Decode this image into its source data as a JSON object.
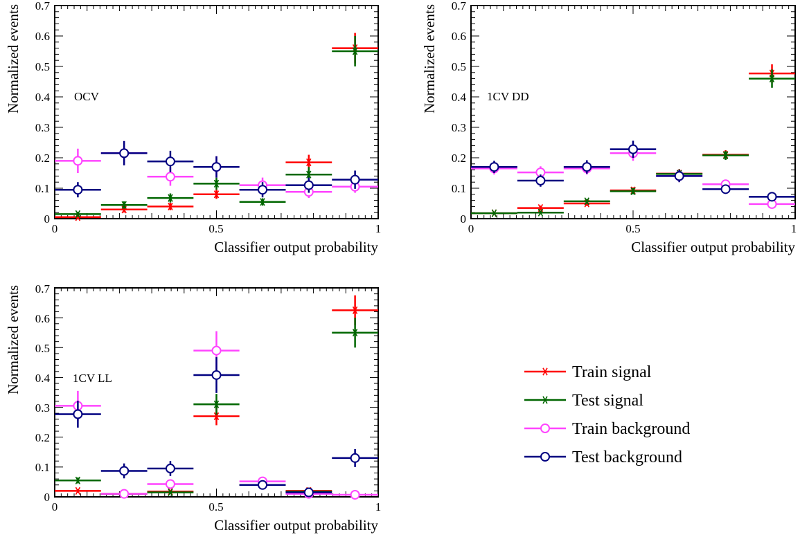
{
  "legend": {
    "entries": [
      {
        "label": "Train signal",
        "color": "#ff0000",
        "marker": "star"
      },
      {
        "label": "Test signal",
        "color": "#006600",
        "marker": "star"
      },
      {
        "label": "Train background",
        "color": "#ff44ff",
        "marker": "circle"
      },
      {
        "label": "Test background",
        "color": "#000080",
        "marker": "circle"
      }
    ]
  },
  "chart_data": [
    {
      "type": "scatter",
      "panel_label": "OCV",
      "xlabel": "Classifier output probability",
      "ylabel": "Normalized events",
      "xlim": [
        0,
        1
      ],
      "ylim": [
        0,
        0.7
      ],
      "x_ticks": [
        "0",
        "0.5",
        "1"
      ],
      "y_ticks": [
        "0",
        "0.1",
        "0.2",
        "0.3",
        "0.4",
        "0.5",
        "0.6",
        "0.7"
      ],
      "bin_edges": [
        0,
        0.143,
        0.286,
        0.429,
        0.571,
        0.714,
        0.857,
        1.0
      ],
      "series": [
        {
          "name": "Train signal",
          "values": [
            0.005,
            0.03,
            0.04,
            0.08,
            0.095,
            0.185,
            0.56
          ],
          "errors": [
            0.005,
            0.01,
            0.012,
            0.015,
            0.015,
            0.025,
            0.05
          ]
        },
        {
          "name": "Test signal",
          "values": [
            0.015,
            0.045,
            0.068,
            0.115,
            0.055,
            0.145,
            0.55
          ],
          "errors": [
            0.008,
            0.012,
            0.015,
            0.02,
            0.012,
            0.025,
            0.05
          ]
        },
        {
          "name": "Train background",
          "values": [
            0.19,
            0.215,
            0.138,
            0.17,
            0.11,
            0.088,
            0.105
          ],
          "errors": [
            0.04,
            0.04,
            0.03,
            0.035,
            0.025,
            0.02,
            0.02
          ]
        },
        {
          "name": "Test background",
          "values": [
            0.095,
            0.215,
            0.188,
            0.17,
            0.095,
            0.11,
            0.128
          ],
          "errors": [
            0.025,
            0.04,
            0.035,
            0.035,
            0.025,
            0.025,
            0.03
          ]
        }
      ]
    },
    {
      "type": "scatter",
      "panel_label": "1CV DD",
      "xlabel": "Classifier output probability",
      "ylabel": "Normalized events",
      "xlim": [
        0,
        1
      ],
      "ylim": [
        0,
        0.7
      ],
      "x_ticks": [
        "0",
        "0.5",
        "1"
      ],
      "y_ticks": [
        "0",
        "0.1",
        "0.2",
        "0.3",
        "0.4",
        "0.5",
        "0.6",
        "0.7"
      ],
      "bin_edges": [
        0,
        0.143,
        0.286,
        0.429,
        0.571,
        0.714,
        0.857,
        1.0
      ],
      "series": [
        {
          "name": "Train signal",
          "values": [
            0.018,
            0.035,
            0.05,
            0.093,
            0.148,
            0.21,
            0.477
          ],
          "errors": [
            0.005,
            0.008,
            0.008,
            0.01,
            0.015,
            0.015,
            0.03
          ]
        },
        {
          "name": "Test signal",
          "values": [
            0.018,
            0.02,
            0.057,
            0.09,
            0.147,
            0.208,
            0.46
          ],
          "errors": [
            0.005,
            0.006,
            0.008,
            0.01,
            0.015,
            0.015,
            0.03
          ]
        },
        {
          "name": "Train background",
          "values": [
            0.165,
            0.152,
            0.165,
            0.215,
            0.14,
            0.113,
            0.048
          ],
          "errors": [
            0.02,
            0.02,
            0.02,
            0.025,
            0.02,
            0.015,
            0.01
          ]
        },
        {
          "name": "Test background",
          "values": [
            0.17,
            0.125,
            0.17,
            0.228,
            0.14,
            0.097,
            0.072
          ],
          "errors": [
            0.02,
            0.02,
            0.022,
            0.028,
            0.02,
            0.015,
            0.012
          ]
        }
      ]
    },
    {
      "type": "scatter",
      "panel_label": "1CV LL",
      "xlabel": "Classifier output probability",
      "ylabel": "Normalized events",
      "xlim": [
        0,
        1
      ],
      "ylim": [
        0,
        0.7
      ],
      "x_ticks": [
        "0",
        "0.5",
        "1"
      ],
      "y_ticks": [
        "0",
        "0.1",
        "0.2",
        "0.3",
        "0.4",
        "0.5",
        "0.6",
        "0.7"
      ],
      "bin_edges": [
        0,
        0.143,
        0.286,
        0.429,
        0.571,
        0.714,
        0.857,
        1.0
      ],
      "series": [
        {
          "name": "Train signal",
          "values": [
            0.02,
            0.01,
            0.018,
            0.27,
            0.04,
            0.02,
            0.625
          ],
          "errors": [
            0.006,
            0.004,
            0.005,
            0.03,
            0.008,
            0.005,
            0.05
          ]
        },
        {
          "name": "Test signal",
          "values": [
            0.055,
            0.01,
            0.015,
            0.31,
            0.04,
            0.018,
            0.55
          ],
          "errors": [
            0.01,
            0.004,
            0.005,
            0.035,
            0.008,
            0.005,
            0.05
          ]
        },
        {
          "name": "Train background",
          "values": [
            0.305,
            0.01,
            0.043,
            0.49,
            0.052,
            0.01,
            0.007
          ],
          "errors": [
            0.05,
            0.004,
            0.015,
            0.065,
            0.015,
            0.004,
            0.003
          ]
        },
        {
          "name": "Test background",
          "values": [
            0.277,
            0.087,
            0.095,
            0.408,
            0.04,
            0.015,
            0.13
          ],
          "errors": [
            0.045,
            0.025,
            0.025,
            0.06,
            0.01,
            0.005,
            0.03
          ]
        }
      ]
    }
  ]
}
